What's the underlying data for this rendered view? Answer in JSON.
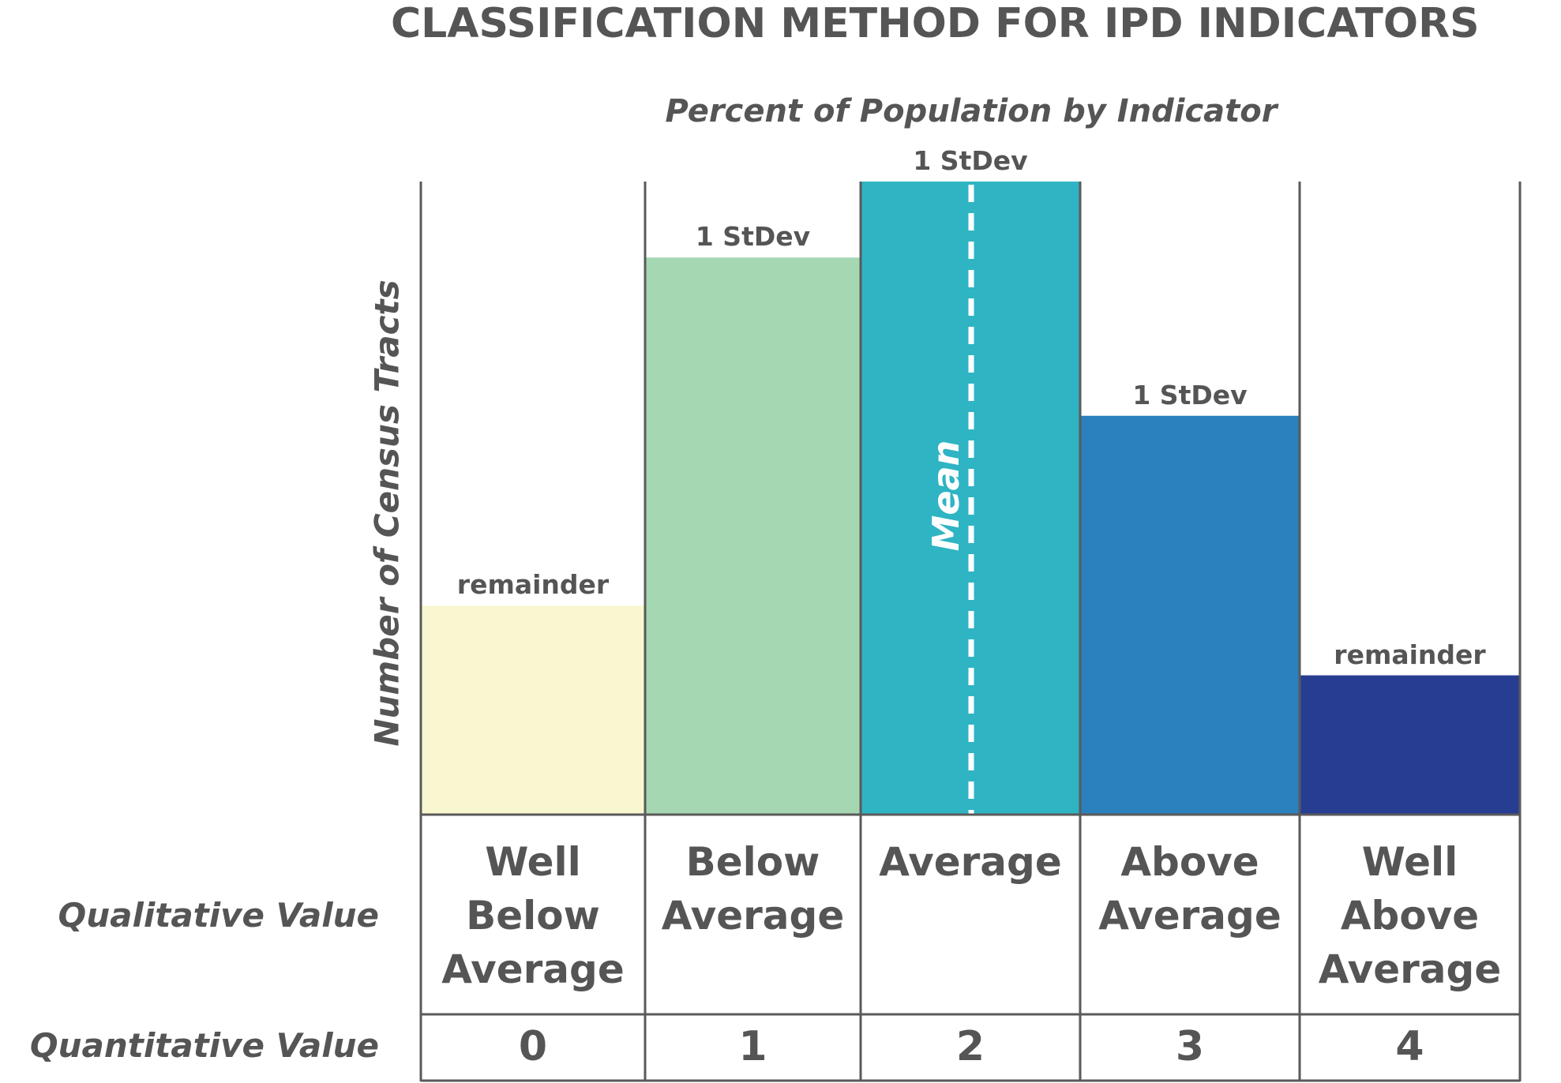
{
  "title": "CLASSIFICATION METHOD FOR IPD INDICATORS",
  "subtitle": "Percent of Population by Indicator",
  "y_axis_label": "Number of Census Tracts",
  "row_labels": {
    "qualitative": "Qualitative Value",
    "quantitative": "Quantitative Value"
  },
  "mean_label": "Mean",
  "categories": [
    {
      "qualitative": [
        "Well",
        "Below",
        "Average"
      ],
      "quantitative": "0",
      "bar_label": "remainder",
      "height": 0.33,
      "color": "#f9f7d0"
    },
    {
      "qualitative": [
        "Below",
        "Average"
      ],
      "quantitative": "1",
      "bar_label": "1 StDev",
      "height": 0.88,
      "color": "#a5d7b3"
    },
    {
      "qualitative": [
        "Average"
      ],
      "quantitative": "2",
      "bar_label": "1 StDev",
      "height": 1.0,
      "color": "#2fb4c4"
    },
    {
      "qualitative": [
        "Above",
        "Average"
      ],
      "quantitative": "3",
      "bar_label": "1 StDev",
      "height": 0.63,
      "color": "#2b80be"
    },
    {
      "qualitative": [
        "Well",
        "Above",
        "Average"
      ],
      "quantitative": "4",
      "bar_label": "remainder",
      "height": 0.22,
      "color": "#263d91"
    }
  ],
  "colors": {
    "grid": "#5a5a5a",
    "text": "#555555",
    "mean_line": "#ffffff"
  }
}
